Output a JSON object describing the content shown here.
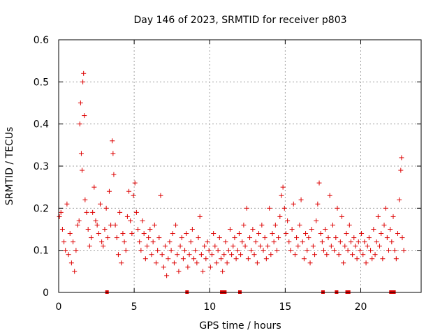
{
  "chart_data": {
    "type": "scatter",
    "title": "Day 146 of 2023, SRMTID for receiver p803",
    "xlabel": "GPS time / hours",
    "ylabel": "SRMTID / TECUs",
    "xlim": [
      0,
      24
    ],
    "ylim": [
      0,
      0.6
    ],
    "x_ticks": [
      0,
      5,
      10,
      15,
      20
    ],
    "y_ticks": [
      0,
      0.1,
      0.2,
      0.3,
      0.4,
      0.5,
      0.6
    ],
    "x_tick_labels": [
      "0",
      "5",
      "10",
      "15",
      "20"
    ],
    "y_tick_labels": [
      "0",
      "0.1",
      "0.2",
      "0.3",
      "0.4",
      "0.5",
      "0.6"
    ],
    "grid": true,
    "marker": "+",
    "color": "#dd0000",
    "series": [
      {
        "name": "SRMTID",
        "points": [
          [
            0.05,
            0.18
          ],
          [
            0.15,
            0.19
          ],
          [
            0.25,
            0.15
          ],
          [
            0.35,
            0.12
          ],
          [
            0.45,
            0.1
          ],
          [
            0.55,
            0.21
          ],
          [
            0.65,
            0.09
          ],
          [
            0.75,
            0.14
          ],
          [
            0.85,
            0.07
          ],
          [
            0.95,
            0.12
          ],
          [
            1.05,
            0.05
          ],
          [
            1.15,
            0.1
          ],
          [
            1.25,
            0.16
          ],
          [
            1.35,
            0.17
          ],
          [
            1.4,
            0.4
          ],
          [
            1.45,
            0.45
          ],
          [
            1.5,
            0.33
          ],
          [
            1.55,
            0.29
          ],
          [
            1.6,
            0.5
          ],
          [
            1.65,
            0.52
          ],
          [
            1.7,
            0.42
          ],
          [
            1.75,
            0.22
          ],
          [
            1.85,
            0.19
          ],
          [
            1.95,
            0.15
          ],
          [
            2.05,
            0.11
          ],
          [
            2.15,
            0.13
          ],
          [
            2.25,
            0.19
          ],
          [
            2.35,
            0.25
          ],
          [
            2.45,
            0.17
          ],
          [
            2.55,
            0.16
          ],
          [
            2.65,
            0.14
          ],
          [
            2.75,
            0.21
          ],
          [
            2.85,
            0.12
          ],
          [
            2.95,
            0.11
          ],
          [
            3.05,
            0.15
          ],
          [
            3.15,
            0.2
          ],
          [
            3.25,
            0.13
          ],
          [
            3.35,
            0.24
          ],
          [
            3.45,
            0.16
          ],
          [
            3.55,
            0.36
          ],
          [
            3.6,
            0.33
          ],
          [
            3.65,
            0.28
          ],
          [
            3.75,
            0.16
          ],
          [
            3.85,
            0.13
          ],
          [
            3.95,
            0.09
          ],
          [
            4.05,
            0.19
          ],
          [
            4.15,
            0.07
          ],
          [
            4.25,
            0.14
          ],
          [
            4.35,
            0.12
          ],
          [
            4.45,
            0.1
          ],
          [
            4.55,
            0.18
          ],
          [
            4.65,
            0.24
          ],
          [
            4.75,
            0.17
          ],
          [
            4.85,
            0.14
          ],
          [
            4.95,
            0.23
          ],
          [
            5.05,
            0.26
          ],
          [
            5.15,
            0.19
          ],
          [
            5.25,
            0.15
          ],
          [
            5.35,
            0.12
          ],
          [
            5.45,
            0.1
          ],
          [
            5.55,
            0.17
          ],
          [
            5.65,
            0.14
          ],
          [
            5.75,
            0.08
          ],
          [
            5.85,
            0.11
          ],
          [
            5.95,
            0.13
          ],
          [
            6.05,
            0.15
          ],
          [
            6.15,
            0.09
          ],
          [
            6.25,
            0.12
          ],
          [
            6.35,
            0.16
          ],
          [
            6.45,
            0.07
          ],
          [
            6.55,
            0.1
          ],
          [
            6.65,
            0.13
          ],
          [
            6.75,
            0.23
          ],
          [
            6.85,
            0.09
          ],
          [
            6.95,
            0.06
          ],
          [
            7.05,
            0.11
          ],
          [
            7.15,
            0.04
          ],
          [
            7.25,
            0.08
          ],
          [
            7.35,
            0.12
          ],
          [
            7.45,
            0.1
          ],
          [
            7.55,
            0.14
          ],
          [
            7.65,
            0.07
          ],
          [
            7.75,
            0.16
          ],
          [
            7.85,
            0.09
          ],
          [
            7.95,
            0.05
          ],
          [
            8.05,
            0.11
          ],
          [
            8.15,
            0.13
          ],
          [
            8.25,
            0.08
          ],
          [
            8.35,
            0.1
          ],
          [
            8.45,
            0.14
          ],
          [
            8.55,
            0.06
          ],
          [
            8.65,
            0.09
          ],
          [
            8.75,
            0.12
          ],
          [
            8.85,
            0.15
          ],
          [
            8.95,
            0.08
          ],
          [
            9.05,
            0.1
          ],
          [
            9.15,
            0.07
          ],
          [
            9.25,
            0.13
          ],
          [
            9.35,
            0.18
          ],
          [
            9.45,
            0.09
          ],
          [
            9.55,
            0.05
          ],
          [
            9.65,
            0.11
          ],
          [
            9.75,
            0.08
          ],
          [
            9.85,
            0.12
          ],
          [
            9.95,
            0.1
          ],
          [
            10.05,
            0.06
          ],
          [
            10.15,
            0.09
          ],
          [
            10.25,
            0.14
          ],
          [
            10.35,
            0.11
          ],
          [
            10.45,
            0.07
          ],
          [
            10.55,
            0.1
          ],
          [
            10.65,
            0.13
          ],
          [
            10.75,
            0.08
          ],
          [
            10.85,
            0.05
          ],
          [
            10.95,
            0.09
          ],
          [
            11.05,
            0.12
          ],
          [
            11.15,
            0.07
          ],
          [
            11.25,
            0.1
          ],
          [
            11.35,
            0.15
          ],
          [
            11.45,
            0.09
          ],
          [
            11.55,
            0.11
          ],
          [
            11.65,
            0.13
          ],
          [
            11.75,
            0.08
          ],
          [
            11.85,
            0.1
          ],
          [
            11.95,
            0.14
          ],
          [
            12.05,
            0.09
          ],
          [
            12.15,
            0.12
          ],
          [
            12.25,
            0.16
          ],
          [
            12.35,
            0.11
          ],
          [
            12.45,
            0.2
          ],
          [
            12.55,
            0.08
          ],
          [
            12.65,
            0.13
          ],
          [
            12.75,
            0.1
          ],
          [
            12.85,
            0.15
          ],
          [
            12.95,
            0.09
          ],
          [
            13.05,
            0.12
          ],
          [
            13.15,
            0.07
          ],
          [
            13.25,
            0.14
          ],
          [
            13.35,
            0.11
          ],
          [
            13.45,
            0.16
          ],
          [
            13.55,
            0.1
          ],
          [
            13.65,
            0.13
          ],
          [
            13.75,
            0.08
          ],
          [
            13.85,
            0.11
          ],
          [
            13.95,
            0.2
          ],
          [
            14.05,
            0.09
          ],
          [
            14.15,
            0.14
          ],
          [
            14.25,
            0.12
          ],
          [
            14.35,
            0.16
          ],
          [
            14.45,
            0.1
          ],
          [
            14.55,
            0.13
          ],
          [
            14.65,
            0.18
          ],
          [
            14.75,
            0.23
          ],
          [
            14.85,
            0.25
          ],
          [
            14.95,
            0.2
          ],
          [
            15.05,
            0.14
          ],
          [
            15.15,
            0.17
          ],
          [
            15.25,
            0.12
          ],
          [
            15.35,
            0.1
          ],
          [
            15.45,
            0.15
          ],
          [
            15.55,
            0.21
          ],
          [
            15.65,
            0.09
          ],
          [
            15.75,
            0.13
          ],
          [
            15.85,
            0.11
          ],
          [
            15.95,
            0.16
          ],
          [
            16.05,
            0.22
          ],
          [
            16.15,
            0.12
          ],
          [
            16.25,
            0.08
          ],
          [
            16.35,
            0.14
          ],
          [
            16.45,
            0.1
          ],
          [
            16.55,
            0.13
          ],
          [
            16.65,
            0.07
          ],
          [
            16.75,
            0.15
          ],
          [
            16.85,
            0.11
          ],
          [
            16.95,
            0.09
          ],
          [
            17.05,
            0.17
          ],
          [
            17.15,
            0.21
          ],
          [
            17.25,
            0.26
          ],
          [
            17.35,
            0.14
          ],
          [
            17.45,
            0.12
          ],
          [
            17.55,
            0.1
          ],
          [
            17.65,
            0.15
          ],
          [
            17.75,
            0.09
          ],
          [
            17.85,
            0.13
          ],
          [
            17.95,
            0.23
          ],
          [
            18.05,
            0.11
          ],
          [
            18.15,
            0.16
          ],
          [
            18.25,
            0.1
          ],
          [
            18.35,
            0.13
          ],
          [
            18.45,
            0.2
          ],
          [
            18.55,
            0.09
          ],
          [
            18.65,
            0.12
          ],
          [
            18.75,
            0.18
          ],
          [
            18.85,
            0.07
          ],
          [
            18.95,
            0.11
          ],
          [
            19.05,
            0.14
          ],
          [
            19.15,
            0.1
          ],
          [
            19.25,
            0.16
          ],
          [
            19.35,
            0.12
          ],
          [
            19.45,
            0.09
          ],
          [
            19.55,
            0.13
          ],
          [
            19.65,
            0.11
          ],
          [
            19.75,
            0.08
          ],
          [
            19.85,
            0.12
          ],
          [
            19.95,
            0.1
          ],
          [
            20.05,
            0.14
          ],
          [
            20.15,
            0.09
          ],
          [
            20.25,
            0.12
          ],
          [
            20.35,
            0.07
          ],
          [
            20.45,
            0.11
          ],
          [
            20.55,
            0.13
          ],
          [
            20.65,
            0.1
          ],
          [
            20.75,
            0.08
          ],
          [
            20.85,
            0.15
          ],
          [
            20.95,
            0.09
          ],
          [
            21.05,
            0.12
          ],
          [
            21.15,
            0.18
          ],
          [
            21.25,
            0.11
          ],
          [
            21.35,
            0.14
          ],
          [
            21.45,
            0.08
          ],
          [
            21.55,
            0.16
          ],
          [
            21.65,
            0.2
          ],
          [
            21.75,
            0.13
          ],
          [
            21.85,
            0.1
          ],
          [
            21.95,
            0.15
          ],
          [
            22.05,
            0.12
          ],
          [
            22.15,
            0.18
          ],
          [
            22.25,
            0.1
          ],
          [
            22.35,
            0.08
          ],
          [
            22.45,
            0.14
          ],
          [
            22.55,
            0.22
          ],
          [
            22.65,
            0.29
          ],
          [
            22.7,
            0.32
          ],
          [
            22.75,
            0.13
          ],
          [
            22.85,
            0.1
          ]
        ]
      }
    ],
    "gap_markers_x": [
      3.2,
      8.5,
      10.8,
      11.0,
      12.0,
      17.5,
      18.4,
      19.1,
      19.2,
      22.0,
      22.2
    ]
  }
}
